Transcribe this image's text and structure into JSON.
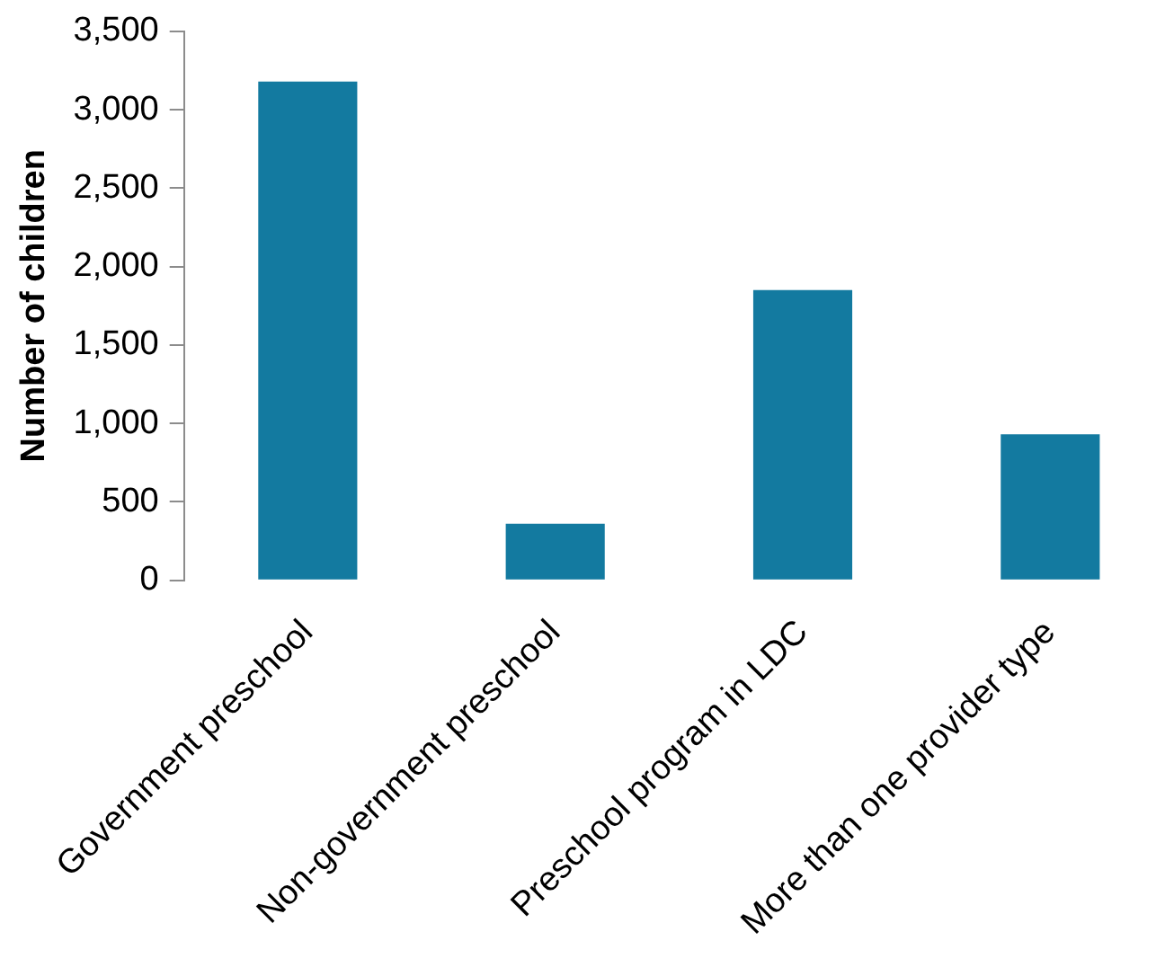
{
  "chart_data": {
    "type": "bar",
    "ylabel": "Number of children",
    "categories": [
      "Government preschool",
      "Non-government preschool",
      "Preschool program in LDC",
      "More than one provider type"
    ],
    "values": [
      3180,
      360,
      1850,
      930
    ],
    "color": "#137aa0",
    "ylim": [
      0,
      3500
    ],
    "yticks": [
      {
        "value": 0,
        "label": "0"
      },
      {
        "value": 500,
        "label": "500"
      },
      {
        "value": 1000,
        "label": "1,000"
      },
      {
        "value": 1500,
        "label": "1,500"
      },
      {
        "value": 2000,
        "label": "2,000"
      },
      {
        "value": 2500,
        "label": "2,500"
      },
      {
        "value": 3000,
        "label": "3,000"
      },
      {
        "value": 3500,
        "label": "3,500"
      }
    ],
    "grid": false,
    "legend": false
  }
}
